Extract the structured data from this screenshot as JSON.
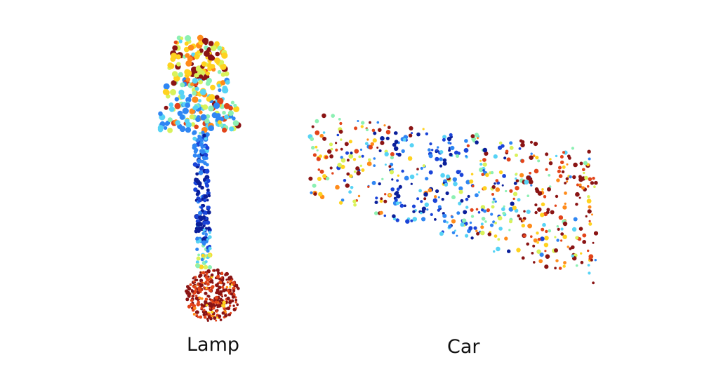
{
  "labels": {
    "lamp": "Lamp",
    "car": "Car"
  },
  "objects": [
    {
      "name": "lamp",
      "shape": "lamp point cloud"
    },
    {
      "name": "car",
      "shape": "car point cloud"
    }
  ],
  "colormap": [
    "#0b1f9a",
    "#1a44d8",
    "#2f86f3",
    "#57d3f5",
    "#8cf0b3",
    "#d9f25a",
    "#ffd21f",
    "#ff8b1a",
    "#e2441a",
    "#8a1414"
  ]
}
